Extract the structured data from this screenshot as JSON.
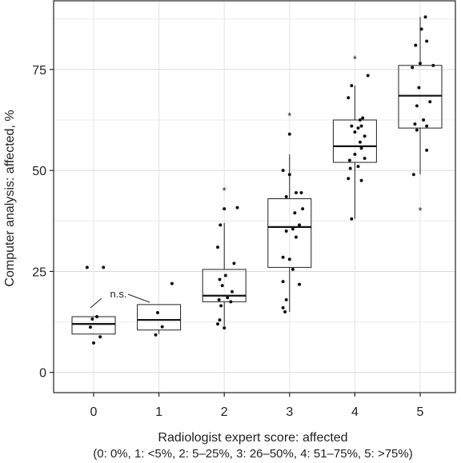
{
  "chart_data": {
    "type": "box",
    "xlabel": "Radiologist expert score: affected",
    "xlabel_sub": "(0: 0%, 1: <5%, 2: 5–25%, 3: 26–50%, 4: 51–75%, 5: >75%)",
    "ylabel": "Computer analysis: affected, %",
    "categories": [
      "0",
      "1",
      "2",
      "3",
      "4",
      "5"
    ],
    "ylim": [
      -5,
      92
    ],
    "yticks": [
      0,
      25,
      50,
      75
    ],
    "grid": true,
    "annotation": "n.s.",
    "boxes": [
      {
        "category": "0",
        "q1": 9.5,
        "median": 12,
        "q3": 13.8,
        "whisker_low": 9.5,
        "whisker_high": 13.8,
        "outliers": []
      },
      {
        "category": "1",
        "q1": 10.5,
        "median": 13,
        "q3": 16.8,
        "whisker_low": 9.5,
        "whisker_high": 16.8,
        "outliers": []
      },
      {
        "category": "2",
        "q1": 17.5,
        "median": 19,
        "q3": 25.5,
        "whisker_low": 11.5,
        "whisker_high": 37,
        "outliers": [
          45.5
        ]
      },
      {
        "category": "3",
        "q1": 26,
        "median": 36,
        "q3": 43,
        "whisker_low": 15,
        "whisker_high": 54,
        "outliers": [
          64
        ]
      },
      {
        "category": "4",
        "q1": 52,
        "median": 56,
        "q3": 62.5,
        "whisker_low": 38,
        "whisker_high": 71,
        "outliers": [
          78
        ]
      },
      {
        "category": "5",
        "q1": 60.5,
        "median": 68.5,
        "q3": 76,
        "whisker_low": 49,
        "whisker_high": 88,
        "outliers": [
          40.5
        ]
      }
    ],
    "points": [
      {
        "x": 0.0,
        "y": 7.3
      },
      {
        "x": 0.1,
        "y": 8.8
      },
      {
        "x": -0.05,
        "y": 11.2
      },
      {
        "x": -0.02,
        "y": 13.2
      },
      {
        "x": 0.05,
        "y": 13.8
      },
      {
        "x": -0.1,
        "y": 26.0
      },
      {
        "x": 0.15,
        "y": 26.0
      },
      {
        "x": 0.95,
        "y": 9.3
      },
      {
        "x": 1.05,
        "y": 11.3
      },
      {
        "x": 0.98,
        "y": 14.8
      },
      {
        "x": 1.2,
        "y": 22.0
      },
      {
        "x": 2.0,
        "y": 11.0
      },
      {
        "x": 1.9,
        "y": 12.0
      },
      {
        "x": 1.93,
        "y": 13.0
      },
      {
        "x": 1.95,
        "y": 16.5
      },
      {
        "x": 2.1,
        "y": 17.5
      },
      {
        "x": 1.92,
        "y": 18.0
      },
      {
        "x": 2.05,
        "y": 18.5
      },
      {
        "x": 2.12,
        "y": 20.0
      },
      {
        "x": 1.97,
        "y": 21.5
      },
      {
        "x": 1.93,
        "y": 23.0
      },
      {
        "x": 2.02,
        "y": 24.0
      },
      {
        "x": 2.15,
        "y": 27.0
      },
      {
        "x": 1.9,
        "y": 31.0
      },
      {
        "x": 1.94,
        "y": 36.5
      },
      {
        "x": 2.0,
        "y": 40.5
      },
      {
        "x": 2.2,
        "y": 40.8
      },
      {
        "x": 2.93,
        "y": 15.0
      },
      {
        "x": 2.9,
        "y": 16.0
      },
      {
        "x": 2.95,
        "y": 18.0
      },
      {
        "x": 2.9,
        "y": 22.5
      },
      {
        "x": 3.15,
        "y": 21.8
      },
      {
        "x": 3.05,
        "y": 25.5
      },
      {
        "x": 2.9,
        "y": 28.5
      },
      {
        "x": 3.0,
        "y": 28.0
      },
      {
        "x": 3.1,
        "y": 33.5
      },
      {
        "x": 2.95,
        "y": 35.0
      },
      {
        "x": 3.05,
        "y": 35.5
      },
      {
        "x": 3.15,
        "y": 36.5
      },
      {
        "x": 3.08,
        "y": 39.5
      },
      {
        "x": 3.2,
        "y": 40.5
      },
      {
        "x": 2.95,
        "y": 43.5
      },
      {
        "x": 3.1,
        "y": 44.5
      },
      {
        "x": 3.18,
        "y": 44.5
      },
      {
        "x": 2.9,
        "y": 50.0
      },
      {
        "x": 3.0,
        "y": 49.0
      },
      {
        "x": 3.0,
        "y": 59.0
      },
      {
        "x": 3.95,
        "y": 38.0
      },
      {
        "x": 3.9,
        "y": 48.0
      },
      {
        "x": 4.1,
        "y": 47.5
      },
      {
        "x": 3.93,
        "y": 50.5
      },
      {
        "x": 4.05,
        "y": 51.0
      },
      {
        "x": 3.92,
        "y": 52.5
      },
      {
        "x": 4.15,
        "y": 53.0
      },
      {
        "x": 4.0,
        "y": 54.0
      },
      {
        "x": 4.1,
        "y": 55.5
      },
      {
        "x": 4.08,
        "y": 57.0
      },
      {
        "x": 4.15,
        "y": 58.5
      },
      {
        "x": 4.0,
        "y": 59.5
      },
      {
        "x": 4.05,
        "y": 60.5
      },
      {
        "x": 4.1,
        "y": 61.0
      },
      {
        "x": 3.95,
        "y": 61.0
      },
      {
        "x": 4.08,
        "y": 62.5
      },
      {
        "x": 4.12,
        "y": 63.0
      },
      {
        "x": 3.9,
        "y": 68.0
      },
      {
        "x": 3.95,
        "y": 71.0
      },
      {
        "x": 4.2,
        "y": 73.5
      },
      {
        "x": 4.9,
        "y": 49.0
      },
      {
        "x": 5.1,
        "y": 55.0
      },
      {
        "x": 4.95,
        "y": 60.0
      },
      {
        "x": 4.92,
        "y": 61.5
      },
      {
        "x": 5.05,
        "y": 62.5
      },
      {
        "x": 5.1,
        "y": 61.0
      },
      {
        "x": 4.95,
        "y": 66.0
      },
      {
        "x": 5.15,
        "y": 67.0
      },
      {
        "x": 4.98,
        "y": 70.5
      },
      {
        "x": 4.88,
        "y": 75.5
      },
      {
        "x": 5.0,
        "y": 76.5
      },
      {
        "x": 5.2,
        "y": 76.0
      },
      {
        "x": 4.93,
        "y": 81.0
      },
      {
        "x": 5.1,
        "y": 82.0
      },
      {
        "x": 5.02,
        "y": 85.0
      },
      {
        "x": 5.08,
        "y": 88.0
      }
    ]
  }
}
